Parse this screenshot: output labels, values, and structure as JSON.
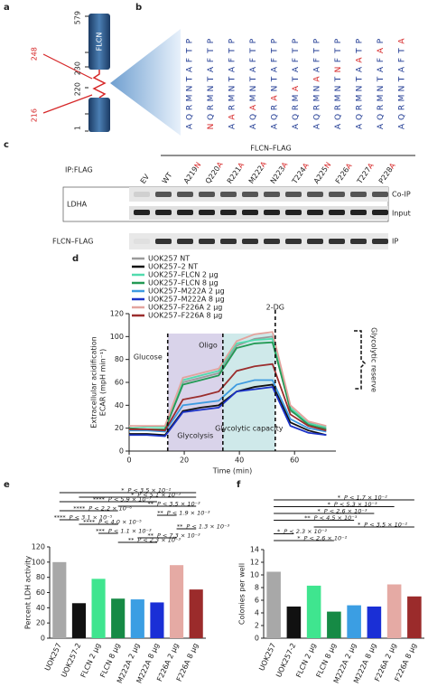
{
  "panel_a": {
    "label": "a",
    "protein": "FLCN",
    "residues": [
      "579",
      "248",
      "230",
      "220",
      "216",
      "1"
    ],
    "residue_colors": [
      "#222222",
      "#d62728",
      "#222222",
      "#222222",
      "#d62728",
      "#222222"
    ]
  },
  "panel_b": {
    "label": "b",
    "highlight_color": "#d62728",
    "columns": [
      {
        "letters": [
          "A",
          "Q",
          "R",
          "M",
          "N",
          "T",
          "A",
          "F",
          "T",
          "P"
        ],
        "highlight": null
      },
      {
        "letters": [
          "N",
          "Q",
          "R",
          "M",
          "N",
          "T",
          "A",
          "F",
          "T",
          "P"
        ],
        "highlight": 0
      },
      {
        "letters": [
          "A",
          "A",
          "R",
          "M",
          "N",
          "T",
          "A",
          "F",
          "T",
          "P"
        ],
        "highlight": 1
      },
      {
        "letters": [
          "A",
          "Q",
          "A",
          "M",
          "N",
          "T",
          "A",
          "F",
          "T",
          "P"
        ],
        "highlight": 2
      },
      {
        "letters": [
          "A",
          "Q",
          "R",
          "A",
          "N",
          "T",
          "A",
          "F",
          "T",
          "P"
        ],
        "highlight": 3
      },
      {
        "letters": [
          "A",
          "Q",
          "R",
          "M",
          "A",
          "T",
          "A",
          "F",
          "T",
          "P"
        ],
        "highlight": 4
      },
      {
        "letters": [
          "A",
          "Q",
          "R",
          "M",
          "N",
          "A",
          "A",
          "F",
          "T",
          "P"
        ],
        "highlight": 5
      },
      {
        "letters": [
          "A",
          "Q",
          "R",
          "M",
          "N",
          "T",
          "N",
          "F",
          "T",
          "P"
        ],
        "highlight": 6
      },
      {
        "letters": [
          "A",
          "Q",
          "R",
          "M",
          "N",
          "T",
          "A",
          "A",
          "T",
          "P"
        ],
        "highlight": 7
      },
      {
        "letters": [
          "A",
          "Q",
          "R",
          "M",
          "N",
          "T",
          "A",
          "F",
          "A",
          "P"
        ],
        "highlight": 8
      },
      {
        "letters": [
          "A",
          "Q",
          "R",
          "M",
          "N",
          "T",
          "A",
          "F",
          "T",
          "A"
        ],
        "highlight": 9
      }
    ]
  },
  "panel_c": {
    "label": "c",
    "header": "FLCN–FLAG",
    "ip": "IP:FLAG",
    "mutation_color": "#d62728",
    "lanes": [
      {
        "text": "EV"
      },
      {
        "text": "WT"
      },
      {
        "text": "A219",
        "mutation": "N"
      },
      {
        "text": "Q220",
        "mutation": "A"
      },
      {
        "text": "R221",
        "mutation": "A"
      },
      {
        "text": "M222",
        "mutation": "A"
      },
      {
        "text": "N223",
        "mutation": "A"
      },
      {
        "text": "T224",
        "mutation": "A"
      },
      {
        "text": "A225",
        "mutation": "N"
      },
      {
        "text": "F226",
        "mutation": "A"
      },
      {
        "text": "T227",
        "mutation": "A"
      },
      {
        "text": "P228",
        "mutation": "A"
      }
    ],
    "rows": [
      "LDHA",
      "FLCN–FLAG"
    ],
    "blots": [
      "Co-IP",
      "Input",
      "IP"
    ]
  },
  "chart_data": [
    {
      "type": "line",
      "label": "d",
      "y_label": "Extracellular acidification",
      "y_label2": "ECAR (mpH min⁻¹)",
      "x_label": "Time (min)",
      "x": [
        0,
        6.5,
        13,
        19.5,
        26,
        32.5,
        39,
        45.5,
        52,
        58.5,
        65,
        71.5
      ],
      "xlim": [
        0,
        75
      ],
      "xticks": [
        0,
        20,
        40,
        60
      ],
      "ylim": [
        0,
        120
      ],
      "yticks": [
        0,
        20,
        40,
        60,
        80,
        100,
        120
      ],
      "series": [
        {
          "name": "UOK257 NT",
          "color": "#9a9a9a",
          "values": [
            20,
            19,
            19,
            60,
            64,
            68,
            92,
            98,
            100,
            35,
            25,
            20
          ]
        },
        {
          "name": "UOK257–2 NT",
          "color": "#111111",
          "values": [
            15,
            15,
            14,
            35,
            38,
            40,
            52,
            56,
            58,
            25,
            18,
            14
          ]
        },
        {
          "name": "UOK257–FLCN 2 μg",
          "color": "#52dcae",
          "values": [
            22,
            21,
            21,
            62,
            66,
            70,
            94,
            97,
            98,
            38,
            24,
            21
          ]
        },
        {
          "name": "UOK257–FLCN 8 μg",
          "color": "#239a55",
          "values": [
            20,
            19,
            19,
            58,
            62,
            66,
            90,
            94,
            95,
            36,
            23,
            19
          ]
        },
        {
          "name": "UOK257–M222A 2 μg",
          "color": "#3f9be0",
          "values": [
            18,
            18,
            17,
            40,
            42,
            44,
            58,
            62,
            62,
            28,
            20,
            17
          ]
        },
        {
          "name": "UOK257–M222A 8 μg",
          "color": "#1c33c8",
          "values": [
            14,
            14,
            13,
            34,
            36,
            38,
            52,
            54,
            56,
            22,
            16,
            14
          ]
        },
        {
          "name": "UOK257–F226A 2 μg",
          "color": "#e3a49e",
          "values": [
            22,
            22,
            22,
            64,
            68,
            72,
            96,
            102,
            104,
            40,
            26,
            22
          ]
        },
        {
          "name": "UOK257–F226A 8 μg",
          "color": "#9b2d2d",
          "values": [
            19,
            19,
            18,
            45,
            48,
            52,
            70,
            74,
            76,
            32,
            22,
            18
          ]
        }
      ],
      "injections": [
        {
          "label": "Glucose",
          "x": 14
        },
        {
          "label": "Oligo",
          "x": 34
        },
        {
          "label": "2-DG",
          "x": 53
        }
      ],
      "regions": [
        {
          "label": "Glycolysis",
          "from": 14,
          "to": 34,
          "color": "#d9d3ea"
        },
        {
          "label": "Glycolytic capacity",
          "from": 34,
          "to": 53,
          "color": "#cfe9ea"
        }
      ],
      "bracket_label": "Glycolytic reserve"
    },
    {
      "type": "bar",
      "label": "e",
      "y_label": "Percent LDH activity",
      "categories": [
        "UOK257",
        "UOK257-2",
        "FLCN 2 μg",
        "FLCN 8 μg",
        "M222A 2 μg",
        "M222A 8 μg",
        "F226A 2 μg",
        "F226A 8 μg"
      ],
      "values": [
        100,
        46,
        78,
        52,
        51,
        47,
        96,
        64
      ],
      "colors": [
        "#a8a8a8",
        "#111111",
        "#3fe58f",
        "#168a45",
        "#3b9ee3",
        "#1a2fd6",
        "#e5aaa4",
        "#9b2b2b"
      ],
      "ylim": [
        0,
        120
      ],
      "yticks": [
        0,
        20,
        40,
        60,
        80,
        100,
        120
      ],
      "comparisons": [
        {
          "stars": "*",
          "p": "P < 3.5 × 10⁻²",
          "from": "UOK257",
          "to": "F226A 8 μg"
        },
        {
          "stars": "*",
          "p": "P < 5.1 × 10⁻³",
          "from": "UOK257-2",
          "to": "F226A 8 μg"
        },
        {
          "stars": "****",
          "p": "P < 5.9 × 10⁻⁷",
          "from": "UOK257",
          "to": "M222A 8 μg"
        },
        {
          "stars": "**",
          "p": "P < 3.5 × 10⁻³",
          "from": "FLCN 8 μg",
          "to": "F226A 8 μg"
        },
        {
          "stars": "****",
          "p": "P < 2.2 × 10⁻⁶",
          "from": "UOK257",
          "to": "FLCN 8 μg"
        },
        {
          "stars": "**",
          "p": "P < 1.9 × 10⁻³",
          "from": "M222A 8 μg",
          "to": "F226A 2 μg"
        },
        {
          "stars": "****",
          "p": "P < 3.1 × 10⁻⁵",
          "from": "UOK257",
          "to": "UOK257-2"
        },
        {
          "stars": "****",
          "p": "P < 4.0 × 10⁻⁵",
          "from": "UOK257-2",
          "to": "FLCN 8 μg"
        },
        {
          "stars": "**",
          "p": "P < 1.3 × 10⁻³",
          "from": "F226A 2 μg",
          "to": "F226A 8 μg"
        },
        {
          "stars": "***",
          "p": "P < 1.1 × 10⁻³",
          "from": "FLCN 2 μg",
          "to": "FLCN 8 μg"
        },
        {
          "stars": "**",
          "p": "P < 7.3 × 10⁻³",
          "from": "M222A 2 μg",
          "to": "F226A 2 μg"
        },
        {
          "stars": "**",
          "p": "P < 2.3 × 10⁻³",
          "from": "FLCN 8 μg",
          "to": "M222A 8 μg"
        }
      ]
    },
    {
      "type": "bar",
      "label": "f",
      "y_label": "Colonies per well",
      "categories": [
        "UOK257",
        "UOK257-2",
        "FLCN 2 μg",
        "FLCN 8 μg",
        "M222A 2 μg",
        "M222A 8 μg",
        "F226A 2 μg",
        "F226A 8 μg"
      ],
      "values": [
        10.5,
        5,
        8.3,
        4.2,
        5.2,
        5,
        8.5,
        6.6
      ],
      "colors": [
        "#a8a8a8",
        "#111111",
        "#3fe58f",
        "#168a45",
        "#3b9ee3",
        "#1a2fd6",
        "#e5aaa4",
        "#9b2b2b"
      ],
      "ylim": [
        0,
        14
      ],
      "yticks": [
        0,
        2,
        4,
        6,
        8,
        10,
        12,
        14
      ],
      "comparisons": [
        {
          "stars": "*",
          "p": "P < 1.7 × 10⁻²",
          "from": "UOK257",
          "to": "F226A 8 μg"
        },
        {
          "stars": "*",
          "p": "P < 5.3 × 10⁻³",
          "from": "UOK257",
          "to": "F226A 2 μg"
        },
        {
          "stars": "*",
          "p": "P < 2.6 × 10⁻³",
          "from": "UOK257",
          "to": "M222A 8 μg"
        },
        {
          "stars": "**",
          "p": "P < 4.5 × 10⁻³",
          "from": "UOK257",
          "to": "M222A 2 μg"
        },
        {
          "stars": "*",
          "p": "P < 3.5 × 10⁻²",
          "from": "FLCN 2 μg",
          "to": "F226A 8 μg"
        },
        {
          "stars": "*",
          "p": "P < 2.3 × 10⁻²",
          "from": "UOK257",
          "to": "UOK257-2"
        },
        {
          "stars": "*",
          "p": "P < 2.6 × 10⁻²",
          "from": "UOK257",
          "to": "FLCN 8 μg"
        }
      ]
    }
  ]
}
